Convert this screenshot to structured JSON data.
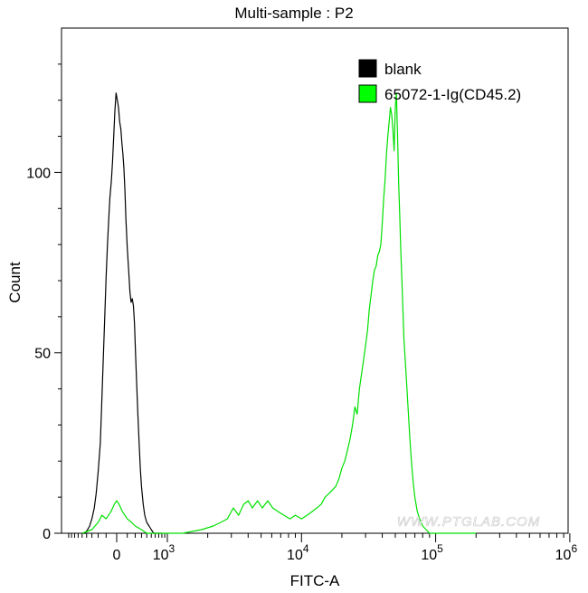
{
  "chart_data": {
    "type": "line",
    "title": "Multi-sample : P2",
    "xlabel": "FITC-A",
    "ylabel": "Count",
    "xscale": "biexponential",
    "ylim": [
      0,
      140
    ],
    "yticks": [
      {
        "value": 0,
        "label": "0"
      },
      {
        "value": 50,
        "label": "50"
      },
      {
        "value": 100,
        "label": "100"
      }
    ],
    "xticks": [
      {
        "value": 0,
        "label": "0"
      },
      {
        "value": 1000,
        "label": "10",
        "exp": "3"
      },
      {
        "value": 10000,
        "label": "10",
        "exp": "4"
      },
      {
        "value": 100000,
        "label": "10",
        "exp": "5"
      },
      {
        "value": 1000000,
        "label": "10",
        "exp": "6"
      }
    ],
    "grid": false,
    "legend_position": "top-right",
    "watermark": "WWW.PTGLAB.COM",
    "series": [
      {
        "name": "blank",
        "color": "#000000",
        "legend_swatch": "#000000",
        "points": [
          [
            -500,
            0
          ],
          [
            -430,
            0
          ],
          [
            -380,
            1
          ],
          [
            -340,
            2
          ],
          [
            -300,
            4
          ],
          [
            -260,
            7
          ],
          [
            -230,
            11
          ],
          [
            -200,
            17
          ],
          [
            -170,
            25
          ],
          [
            -150,
            37
          ],
          [
            -130,
            50
          ],
          [
            -115,
            60
          ],
          [
            -100,
            71
          ],
          [
            -85,
            80
          ],
          [
            -70,
            88
          ],
          [
            -60,
            93
          ],
          [
            -45,
            98
          ],
          [
            -35,
            103
          ],
          [
            -25,
            110
          ],
          [
            -15,
            117
          ],
          [
            -5,
            122
          ],
          [
            5,
            120
          ],
          [
            15,
            118
          ],
          [
            25,
            114
          ],
          [
            35,
            112
          ],
          [
            45,
            108
          ],
          [
            55,
            105
          ],
          [
            65,
            101
          ],
          [
            75,
            95
          ],
          [
            85,
            87
          ],
          [
            100,
            79
          ],
          [
            115,
            73
          ],
          [
            130,
            67
          ],
          [
            145,
            64
          ],
          [
            160,
            65
          ],
          [
            175,
            63
          ],
          [
            190,
            58
          ],
          [
            205,
            50
          ],
          [
            220,
            42
          ],
          [
            240,
            33
          ],
          [
            260,
            25
          ],
          [
            280,
            18
          ],
          [
            300,
            13
          ],
          [
            330,
            8
          ],
          [
            360,
            5
          ],
          [
            400,
            3
          ],
          [
            450,
            2
          ],
          [
            500,
            1
          ],
          [
            560,
            0
          ],
          [
            650,
            0
          ],
          [
            800,
            0
          ]
        ]
      },
      {
        "name": "65072-1-Ig(CD45.2)",
        "color": "#00e000",
        "legend_swatch": "#00ff00",
        "points": [
          [
            -500,
            0
          ],
          [
            -300,
            1
          ],
          [
            -200,
            3
          ],
          [
            -150,
            5
          ],
          [
            -100,
            4
          ],
          [
            -50,
            6
          ],
          [
            -20,
            8
          ],
          [
            0,
            9
          ],
          [
            20,
            8
          ],
          [
            50,
            6
          ],
          [
            100,
            4
          ],
          [
            150,
            3
          ],
          [
            200,
            2
          ],
          [
            300,
            1
          ],
          [
            400,
            0
          ],
          [
            600,
            0
          ],
          [
            900,
            0
          ],
          [
            1300,
            0
          ],
          [
            1800,
            1
          ],
          [
            2200,
            2
          ],
          [
            2500,
            3
          ],
          [
            2800,
            4
          ],
          [
            3100,
            7
          ],
          [
            3400,
            5
          ],
          [
            3700,
            8
          ],
          [
            4000,
            9
          ],
          [
            4300,
            7
          ],
          [
            4700,
            9
          ],
          [
            5100,
            7
          ],
          [
            5600,
            9
          ],
          [
            6100,
            7
          ],
          [
            6700,
            6
          ],
          [
            7400,
            5
          ],
          [
            8200,
            4
          ],
          [
            9000,
            5
          ],
          [
            10000,
            4
          ],
          [
            11000,
            5
          ],
          [
            12000,
            6
          ],
          [
            13000,
            7
          ],
          [
            14000,
            8
          ],
          [
            15000,
            10
          ],
          [
            16000,
            11
          ],
          [
            17000,
            12
          ],
          [
            18000,
            13
          ],
          [
            19000,
            15
          ],
          [
            20000,
            18
          ],
          [
            21000,
            20
          ],
          [
            22000,
            23
          ],
          [
            23000,
            26
          ],
          [
            24000,
            30
          ],
          [
            25000,
            35
          ],
          [
            26000,
            33
          ],
          [
            27000,
            40
          ],
          [
            28000,
            44
          ],
          [
            29000,
            48
          ],
          [
            30000,
            52
          ],
          [
            31000,
            56
          ],
          [
            32000,
            62
          ],
          [
            33000,
            66
          ],
          [
            34000,
            70
          ],
          [
            35000,
            73
          ],
          [
            36000,
            74
          ],
          [
            37000,
            77
          ],
          [
            38000,
            78
          ],
          [
            39000,
            80
          ],
          [
            40000,
            86
          ],
          [
            41000,
            93
          ],
          [
            42000,
            98
          ],
          [
            43000,
            105
          ],
          [
            44000,
            110
          ],
          [
            45000,
            114
          ],
          [
            46000,
            118
          ],
          [
            47000,
            116
          ],
          [
            48000,
            112
          ],
          [
            49000,
            106
          ],
          [
            50000,
            118
          ],
          [
            51000,
            122
          ],
          [
            52000,
            110
          ],
          [
            53000,
            97
          ],
          [
            54000,
            88
          ],
          [
            55000,
            78
          ],
          [
            56000,
            70
          ],
          [
            57000,
            62
          ],
          [
            58000,
            54
          ],
          [
            60000,
            45
          ],
          [
            62000,
            36
          ],
          [
            64000,
            27
          ],
          [
            66000,
            20
          ],
          [
            68000,
            14
          ],
          [
            70000,
            10
          ],
          [
            73000,
            6
          ],
          [
            76000,
            4
          ],
          [
            80000,
            2
          ],
          [
            85000,
            1
          ],
          [
            90000,
            0
          ],
          [
            100000,
            0
          ],
          [
            130000,
            0
          ],
          [
            200000,
            0
          ]
        ]
      }
    ]
  }
}
